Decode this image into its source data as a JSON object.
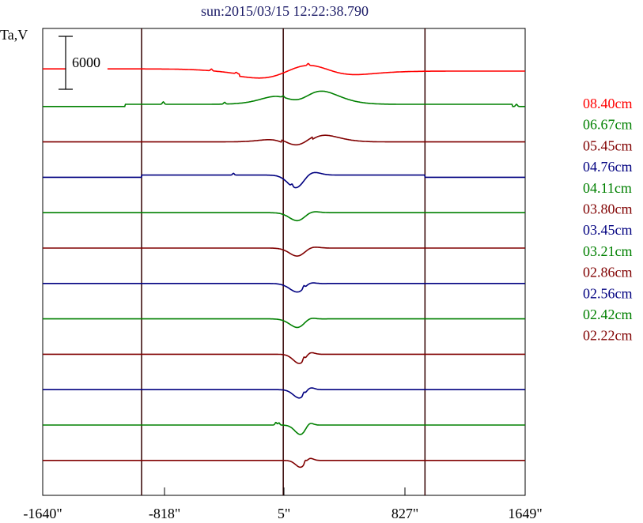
{
  "chart_data": {
    "type": "line",
    "title": "sun:2015/03/15 12:22:38.790",
    "ylabel": "Ta,V",
    "xlabel": "",
    "x_ticks": [
      "-1640\"",
      "-818\"",
      "5\"",
      "827\"",
      "1649\""
    ],
    "xlim": [
      -1640,
      1649
    ],
    "vertical_lines": [
      -966,
      0,
      966
    ],
    "scale_bar": {
      "label": "6000",
      "value": 6000
    },
    "grid": false,
    "legend_position": "right",
    "series": [
      {
        "name": "08.40cm",
        "color": "#ff0000",
        "offset": 0,
        "dip": [
          90,
          1400,
          300
        ],
        "peak": [
          160,
          2000,
          150
        ],
        "step": [
          -2000,
          -300
        ],
        "bumps": [
          [
            -490,
            200
          ],
          [
            -320,
            150
          ],
          [
            170,
            220
          ]
        ],
        "gap": [
          -1480,
          -1200
        ]
      },
      {
        "name": "06.67cm",
        "color": "#008000",
        "offset": 1,
        "dip": [
          100,
          1700,
          90
        ],
        "peak": [
          140,
          2300,
          180
        ],
        "step": [
          -1080,
          1560
        ],
        "bumps": [
          [
            -818,
            280
          ],
          [
            -400,
            200
          ],
          [
            0,
            180
          ],
          [
            1590,
            260
          ]
        ]
      },
      {
        "name": "05.45cm",
        "color": "#800000",
        "offset": 2,
        "dip": [
          100,
          1900,
          90
        ],
        "peak": [
          150,
          1400,
          160
        ],
        "step": [
          -10,
          200
        ],
        "bumps": []
      },
      {
        "name": "04.76cm",
        "color": "#000080",
        "offset": 3,
        "dip": [
          100,
          1900,
          60
        ],
        "peak": [
          160,
          900,
          60
        ],
        "step": [
          -966,
          966
        ],
        "bumps": [
          [
            -340,
            200
          ],
          [
            60,
            280
          ]
        ]
      },
      {
        "name": "04.11cm",
        "color": "#008000",
        "offset": 4,
        "dip": [
          110,
          1100,
          60
        ],
        "peak": [
          170,
          500,
          50
        ],
        "step": null,
        "bumps": []
      },
      {
        "name": "03.80cm",
        "color": "#800000",
        "offset": 5,
        "dip": [
          110,
          1100,
          60
        ],
        "peak": [
          170,
          500,
          50
        ],
        "step": null,
        "bumps": []
      },
      {
        "name": "03.45cm",
        "color": "#000080",
        "offset": 6,
        "dip": [
          110,
          1100,
          60
        ],
        "peak": [
          170,
          550,
          40
        ],
        "step": null,
        "bumps": [
          [
            140,
            300
          ]
        ]
      },
      {
        "name": "03.21cm",
        "color": "#008000",
        "offset": 7,
        "dip": [
          110,
          1100,
          60
        ],
        "peak": [
          170,
          550,
          40
        ],
        "step": null,
        "bumps": []
      },
      {
        "name": "02.86cm",
        "color": "#800000",
        "offset": 8,
        "dip": [
          115,
          1100,
          45
        ],
        "peak": [
          175,
          500,
          30
        ],
        "step": null,
        "bumps": [
          [
            140,
            350
          ]
        ]
      },
      {
        "name": "02.56cm",
        "color": "#000080",
        "offset": 9,
        "dip": [
          115,
          1000,
          45
        ],
        "peak": [
          175,
          500,
          30
        ],
        "step": null,
        "bumps": [
          [
            140,
            300
          ]
        ]
      },
      {
        "name": "02.42cm",
        "color": "#008000",
        "offset": 10,
        "dip": [
          120,
          1100,
          40
        ],
        "peak": [
          175,
          500,
          25
        ],
        "step": null,
        "bumps": [
          [
            -50,
            300
          ],
          [
            -30,
            250
          ]
        ]
      },
      {
        "name": "02.22cm",
        "color": "#800000",
        "offset": 11,
        "dip": [
          120,
          800,
          35
        ],
        "peak": [
          175,
          400,
          25
        ],
        "step": null,
        "bumps": [
          [
            150,
            300
          ]
        ]
      }
    ]
  }
}
